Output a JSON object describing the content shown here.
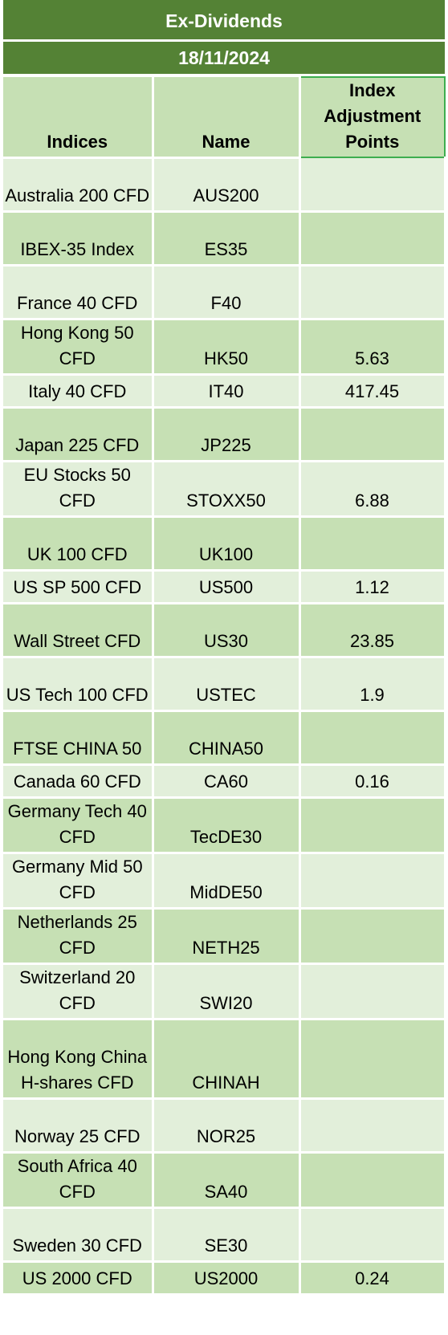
{
  "title": "Ex-Dividends",
  "date": "18/11/2024",
  "columns": [
    "Indices",
    "Name",
    "Index Adjustment Points"
  ],
  "rows": [
    {
      "index": "Australia 200 CFD",
      "name": "AUS200",
      "points": "",
      "h": "h2"
    },
    {
      "index": "IBEX-35 Index",
      "name": "ES35",
      "points": "",
      "h": "h1"
    },
    {
      "index": "France 40 CFD",
      "name": "F40",
      "points": "",
      "h": "h1"
    },
    {
      "index": "Hong Kong 50 CFD",
      "name": "HK50",
      "points": "5.63",
      "h": "h2"
    },
    {
      "index": "Italy 40 CFD",
      "name": "IT40",
      "points": "417.45",
      "h": "h0"
    },
    {
      "index": "Japan 225 CFD",
      "name": "JP225",
      "points": "",
      "h": "h1"
    },
    {
      "index": "EU Stocks 50 CFD",
      "name": "STOXX50",
      "points": "6.88",
      "h": "h2"
    },
    {
      "index": "UK 100 CFD",
      "name": "UK100",
      "points": "",
      "h": "h1"
    },
    {
      "index": "US SP 500 CFD",
      "name": "US500",
      "points": "1.12",
      "h": "h0"
    },
    {
      "index": "Wall Street CFD",
      "name": "US30",
      "points": "23.85",
      "h": "h2"
    },
    {
      "index": "US Tech 100 CFD",
      "name": "USTEC",
      "points": "1.9",
      "h": "h2"
    },
    {
      "index": "FTSE CHINA 50",
      "name": "CHINA50",
      "points": "",
      "h": "h1"
    },
    {
      "index": "Canada 60 CFD",
      "name": "CA60",
      "points": "0.16",
      "h": "h0"
    },
    {
      "index": "Germany Tech 40 CFD",
      "name": "TecDE30",
      "points": "",
      "h": "h2"
    },
    {
      "index": "Germany Mid 50 CFD",
      "name": "MidDE50",
      "points": "",
      "h": "h2"
    },
    {
      "index": "Netherlands 25 CFD",
      "name": "NETH25",
      "points": "",
      "h": "h2"
    },
    {
      "index": "Switzerland 20 CFD",
      "name": "SWI20",
      "points": "",
      "h": "h2"
    },
    {
      "index": "Hong Kong China H-shares CFD",
      "name": "CHINAH",
      "points": "",
      "h": "h3"
    },
    {
      "index": "Norway 25 CFD",
      "name": "NOR25",
      "points": "",
      "h": "h1"
    },
    {
      "index": "South Africa 40 CFD",
      "name": "SA40",
      "points": "",
      "h": "h2"
    },
    {
      "index": "Sweden 30 CFD",
      "name": "SE30",
      "points": "",
      "h": "h2"
    },
    {
      "index": "US 2000 CFD",
      "name": "US2000",
      "points": "0.24",
      "h": "h0"
    }
  ]
}
